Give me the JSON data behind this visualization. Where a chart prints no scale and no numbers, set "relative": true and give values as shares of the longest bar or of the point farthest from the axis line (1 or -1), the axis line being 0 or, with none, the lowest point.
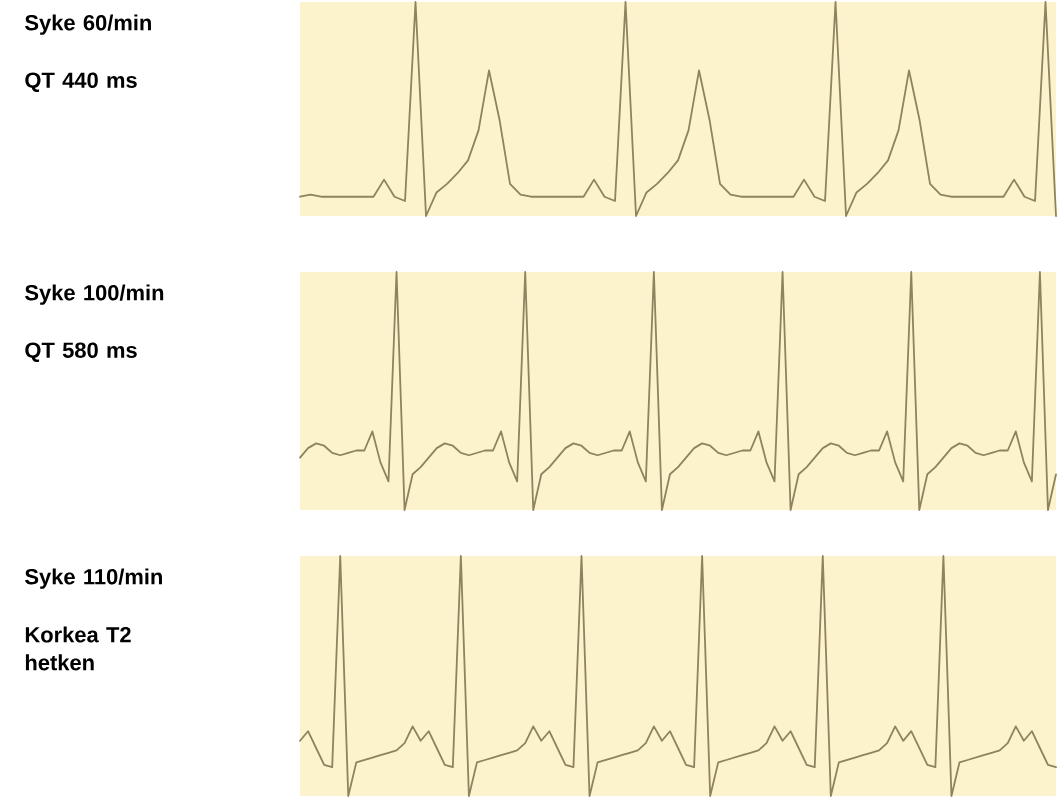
{
  "chart_data": [
    {
      "type": "line",
      "relative": true,
      "annotations": [
        "Syke 60/min",
        "QT 440 ms"
      ],
      "categories": [
        null,
        null,
        null,
        null,
        null,
        null,
        null,
        null,
        null,
        null,
        null,
        null,
        null,
        null,
        null,
        null,
        null,
        null,
        null,
        null,
        null,
        null,
        null,
        null,
        null,
        null,
        null,
        null,
        null,
        null,
        null,
        null,
        null,
        null,
        null,
        null,
        null,
        null,
        null,
        null,
        null,
        null,
        null,
        null,
        null,
        null,
        null,
        null,
        null,
        null,
        null,
        null,
        null,
        null,
        null,
        null,
        null,
        null,
        null,
        null,
        null,
        null,
        null,
        null,
        null,
        null,
        null,
        null,
        null,
        null,
        null,
        null,
        null
      ],
      "series": [
        {
          "color": "#8f825e",
          "values": [
            0.09,
            0.1,
            0.09,
            0.09,
            0.09,
            0.09,
            0.09,
            0.09,
            0.17,
            0.09,
            0.07,
            1.0,
            0.0,
            0.11,
            0.15,
            0.2,
            0.26,
            0.4,
            0.68,
            0.45,
            0.15,
            0.1,
            0.09,
            0.09,
            0.09,
            0.09,
            0.09,
            0.09,
            0.17,
            0.09,
            0.07,
            1.0,
            0.0,
            0.11,
            0.15,
            0.2,
            0.26,
            0.4,
            0.68,
            0.45,
            0.15,
            0.1,
            0.09,
            0.09,
            0.09,
            0.09,
            0.09,
            0.09,
            0.17,
            0.09,
            0.07,
            1.0,
            0.0,
            0.11,
            0.15,
            0.2,
            0.26,
            0.4,
            0.68,
            0.45,
            0.15,
            0.1,
            0.09,
            0.09,
            0.09,
            0.09,
            0.09,
            0.09,
            0.17,
            0.09,
            0.07,
            1.0,
            0.0
          ]
        }
      ]
    },
    {
      "type": "line",
      "relative": true,
      "annotations": [
        "Syke 100/min",
        "QT 580 ms"
      ],
      "categories": [
        null,
        null,
        null,
        null,
        null,
        null,
        null,
        null,
        null,
        null,
        null,
        null,
        null,
        null,
        null,
        null,
        null,
        null,
        null,
        null,
        null,
        null,
        null,
        null,
        null,
        null,
        null,
        null,
        null,
        null,
        null,
        null,
        null,
        null,
        null,
        null,
        null,
        null,
        null,
        null,
        null,
        null,
        null,
        null,
        null,
        null,
        null,
        null,
        null,
        null,
        null,
        null,
        null,
        null,
        null,
        null,
        null,
        null,
        null,
        null,
        null,
        null,
        null,
        null,
        null,
        null,
        null,
        null,
        null,
        null,
        null,
        null,
        null,
        null,
        null,
        null,
        null,
        null,
        null,
        null,
        null,
        null,
        null,
        null,
        null,
        null,
        null,
        null,
        null,
        null,
        null,
        null,
        null,
        null,
        null
      ],
      "series": [
        {
          "color": "#8f825e",
          "values": [
            0.22,
            0.26,
            0.28,
            0.27,
            0.24,
            0.23,
            0.24,
            0.25,
            0.25,
            0.33,
            0.2,
            0.12,
            1.0,
            0.0,
            0.15,
            0.18,
            0.22,
            0.26,
            0.28,
            0.27,
            0.24,
            0.23,
            0.24,
            0.25,
            0.25,
            0.33,
            0.2,
            0.12,
            1.0,
            0.0,
            0.15,
            0.18,
            0.22,
            0.26,
            0.28,
            0.27,
            0.24,
            0.23,
            0.24,
            0.25,
            0.25,
            0.33,
            0.2,
            0.12,
            1.0,
            0.0,
            0.15,
            0.18,
            0.22,
            0.26,
            0.28,
            0.27,
            0.24,
            0.23,
            0.24,
            0.25,
            0.25,
            0.33,
            0.2,
            0.12,
            1.0,
            0.0,
            0.15,
            0.18,
            0.22,
            0.26,
            0.28,
            0.27,
            0.24,
            0.23,
            0.24,
            0.25,
            0.25,
            0.33,
            0.2,
            0.12,
            1.0,
            0.0,
            0.15,
            0.18,
            0.22,
            0.26,
            0.28,
            0.27,
            0.24,
            0.23,
            0.24,
            0.25,
            0.25,
            0.33,
            0.2,
            0.12,
            1.0,
            0.0,
            0.15
          ]
        }
      ]
    },
    {
      "type": "line",
      "relative": true,
      "annotations": [
        "Syke 110/min",
        "Korkea T2 hetken"
      ],
      "categories": [
        null,
        null,
        null,
        null,
        null,
        null,
        null,
        null,
        null,
        null,
        null,
        null,
        null,
        null,
        null,
        null,
        null,
        null,
        null,
        null,
        null,
        null,
        null,
        null,
        null,
        null,
        null,
        null,
        null,
        null,
        null,
        null,
        null,
        null,
        null,
        null,
        null,
        null,
        null,
        null,
        null,
        null,
        null,
        null,
        null,
        null,
        null,
        null,
        null,
        null,
        null,
        null,
        null,
        null,
        null,
        null,
        null,
        null,
        null,
        null,
        null,
        null,
        null,
        null,
        null,
        null,
        null,
        null,
        null,
        null,
        null,
        null,
        null,
        null,
        null,
        null,
        null,
        null,
        null,
        null,
        null,
        null,
        null,
        null,
        null,
        null,
        null,
        null,
        null,
        null,
        null,
        null,
        null,
        null,
        null
      ],
      "series": [
        {
          "color": "#8f825e",
          "values": [
            0.23,
            0.27,
            0.2,
            0.13,
            0.12,
            1.0,
            0.0,
            0.14,
            0.15,
            0.16,
            0.17,
            0.18,
            0.19,
            0.22,
            0.29,
            0.23,
            0.27,
            0.2,
            0.13,
            0.12,
            1.0,
            0.0,
            0.14,
            0.15,
            0.16,
            0.17,
            0.18,
            0.19,
            0.22,
            0.29,
            0.23,
            0.27,
            0.2,
            0.13,
            0.12,
            1.0,
            0.0,
            0.14,
            0.15,
            0.16,
            0.17,
            0.18,
            0.19,
            0.22,
            0.29,
            0.23,
            0.27,
            0.2,
            0.13,
            0.12,
            1.0,
            0.0,
            0.14,
            0.15,
            0.16,
            0.17,
            0.18,
            0.19,
            0.22,
            0.29,
            0.23,
            0.27,
            0.2,
            0.13,
            0.12,
            1.0,
            0.0,
            0.14,
            0.15,
            0.16,
            0.17,
            0.18,
            0.19,
            0.22,
            0.29,
            0.23,
            0.27,
            0.2,
            0.13,
            0.12,
            1.0,
            0.0,
            0.14,
            0.15,
            0.16,
            0.17,
            0.18,
            0.19,
            0.22,
            0.29,
            0.23,
            0.27,
            0.2,
            0.13,
            0.12
          ]
        }
      ]
    }
  ]
}
